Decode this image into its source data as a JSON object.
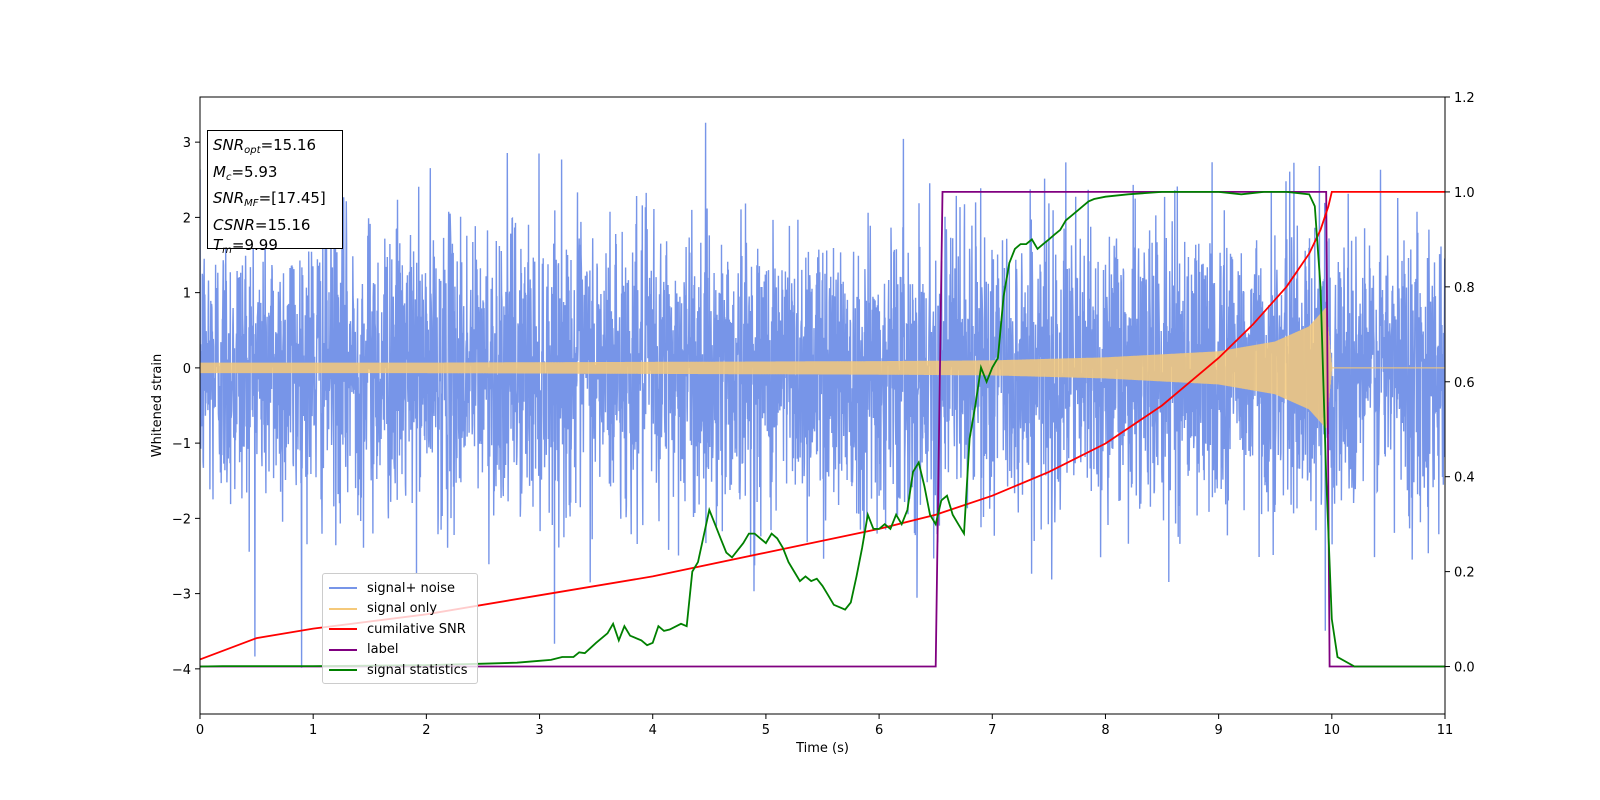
{
  "chart_data": {
    "type": "line",
    "xlabel": "Time (s)",
    "ylabel": "Whitened strain",
    "xlim": [
      0,
      11
    ],
    "ylim_left": [
      -4.6,
      3.6
    ],
    "ylim_right": [
      -0.1,
      1.2
    ],
    "x_ticks": [
      "0",
      "1",
      "2",
      "3",
      "4",
      "5",
      "6",
      "7",
      "8",
      "9",
      "10",
      "11"
    ],
    "y_ticks_left": [
      "−4",
      "−3",
      "−2",
      "−1",
      "0",
      "1",
      "2",
      "3"
    ],
    "y_ticks_right": [
      "0.0",
      "0.2",
      "0.4",
      "0.6",
      "0.8",
      "1.0",
      "1.2"
    ],
    "grid": false,
    "legend_position": "lower-left",
    "info_box": {
      "snr_opt": "=15.16",
      "mc": "=5.93",
      "snr_mf": "=[17.45]",
      "csnr": "=15.16",
      "tm": "=9.99"
    },
    "series": [
      {
        "name": "signal+ noise",
        "color": "#7795e8",
        "axis": "left",
        "noise_std": 1.0,
        "t_end": 11,
        "note_peaks": [
          3.25,
          -4.2
        ]
      },
      {
        "name": "signal only",
        "color": "#f5c97a",
        "axis": "left",
        "envelope": {
          "x": [
            0,
            2,
            4,
            6,
            7,
            8,
            9,
            9.5,
            9.8,
            9.95,
            10,
            11
          ],
          "y": [
            0.07,
            0.07,
            0.08,
            0.09,
            0.1,
            0.14,
            0.22,
            0.35,
            0.55,
            0.8,
            0.0,
            0.0
          ]
        }
      },
      {
        "name": "cumilative SNR",
        "color": "#ff0000",
        "axis": "right",
        "x": [
          0,
          0.5,
          1,
          2,
          3,
          4,
          5,
          6,
          6.5,
          7,
          7.5,
          8,
          8.5,
          9,
          9.3,
          9.6,
          9.8,
          9.9,
          9.97,
          10,
          11
        ],
        "y": [
          0.015,
          0.06,
          0.08,
          0.11,
          0.15,
          0.19,
          0.24,
          0.29,
          0.32,
          0.36,
          0.41,
          0.47,
          0.55,
          0.65,
          0.72,
          0.8,
          0.87,
          0.92,
          0.97,
          1.0,
          1.0
        ]
      },
      {
        "name": "label",
        "color": "#800080",
        "axis": "right",
        "x": [
          0,
          6.5,
          6.56,
          9.95,
          9.98,
          11
        ],
        "y": [
          0,
          0,
          1,
          1,
          0,
          0
        ]
      },
      {
        "name": "signal statistics",
        "color": "#008000",
        "axis": "right",
        "x": [
          0,
          0.2,
          0.5,
          1,
          1.5,
          2,
          2.5,
          2.8,
          3,
          3.1,
          3.2,
          3.3,
          3.35,
          3.4,
          3.5,
          3.6,
          3.65,
          3.7,
          3.75,
          3.8,
          3.9,
          3.95,
          4.0,
          4.05,
          4.1,
          4.15,
          4.25,
          4.3,
          4.35,
          4.4,
          4.5,
          4.55,
          4.6,
          4.65,
          4.7,
          4.75,
          4.8,
          4.85,
          4.9,
          4.95,
          5.0,
          5.05,
          5.1,
          5.15,
          5.2,
          5.25,
          5.3,
          5.35,
          5.4,
          5.45,
          5.5,
          5.55,
          5.6,
          5.65,
          5.7,
          5.75,
          5.8,
          5.85,
          5.9,
          5.95,
          6.0,
          6.05,
          6.1,
          6.15,
          6.2,
          6.25,
          6.3,
          6.35,
          6.4,
          6.45,
          6.5,
          6.55,
          6.6,
          6.65,
          6.7,
          6.75,
          6.8,
          6.85,
          6.9,
          6.95,
          7.0,
          7.05,
          7.1,
          7.15,
          7.2,
          7.25,
          7.3,
          7.35,
          7.4,
          7.45,
          7.5,
          7.55,
          7.6,
          7.65,
          7.7,
          7.75,
          7.8,
          7.85,
          7.9,
          8.0,
          8.2,
          8.5,
          8.8,
          9.0,
          9.2,
          9.4,
          9.6,
          9.8,
          9.85,
          9.9,
          9.95,
          10.0,
          10.05,
          10.2,
          11
        ],
        "y": [
          0.0,
          0.001,
          0.001,
          0.001,
          0.002,
          0.003,
          0.006,
          0.008,
          0.012,
          0.014,
          0.02,
          0.02,
          0.03,
          0.028,
          0.05,
          0.07,
          0.09,
          0.055,
          0.085,
          0.065,
          0.055,
          0.045,
          0.05,
          0.085,
          0.075,
          0.078,
          0.09,
          0.085,
          0.2,
          0.22,
          0.33,
          0.3,
          0.27,
          0.24,
          0.23,
          0.245,
          0.26,
          0.28,
          0.28,
          0.27,
          0.26,
          0.28,
          0.27,
          0.25,
          0.22,
          0.2,
          0.18,
          0.19,
          0.18,
          0.185,
          0.17,
          0.15,
          0.13,
          0.125,
          0.12,
          0.135,
          0.19,
          0.25,
          0.32,
          0.29,
          0.29,
          0.3,
          0.29,
          0.32,
          0.3,
          0.33,
          0.41,
          0.43,
          0.38,
          0.32,
          0.3,
          0.35,
          0.36,
          0.32,
          0.3,
          0.28,
          0.48,
          0.55,
          0.63,
          0.6,
          0.63,
          0.65,
          0.78,
          0.85,
          0.88,
          0.89,
          0.89,
          0.9,
          0.88,
          0.89,
          0.9,
          0.91,
          0.92,
          0.94,
          0.95,
          0.96,
          0.97,
          0.98,
          0.985,
          0.99,
          0.995,
          1.0,
          1.0,
          1.0,
          0.995,
          1.0,
          1.0,
          0.995,
          0.97,
          0.8,
          0.4,
          0.1,
          0.02,
          0.0,
          0.0
        ]
      }
    ]
  }
}
